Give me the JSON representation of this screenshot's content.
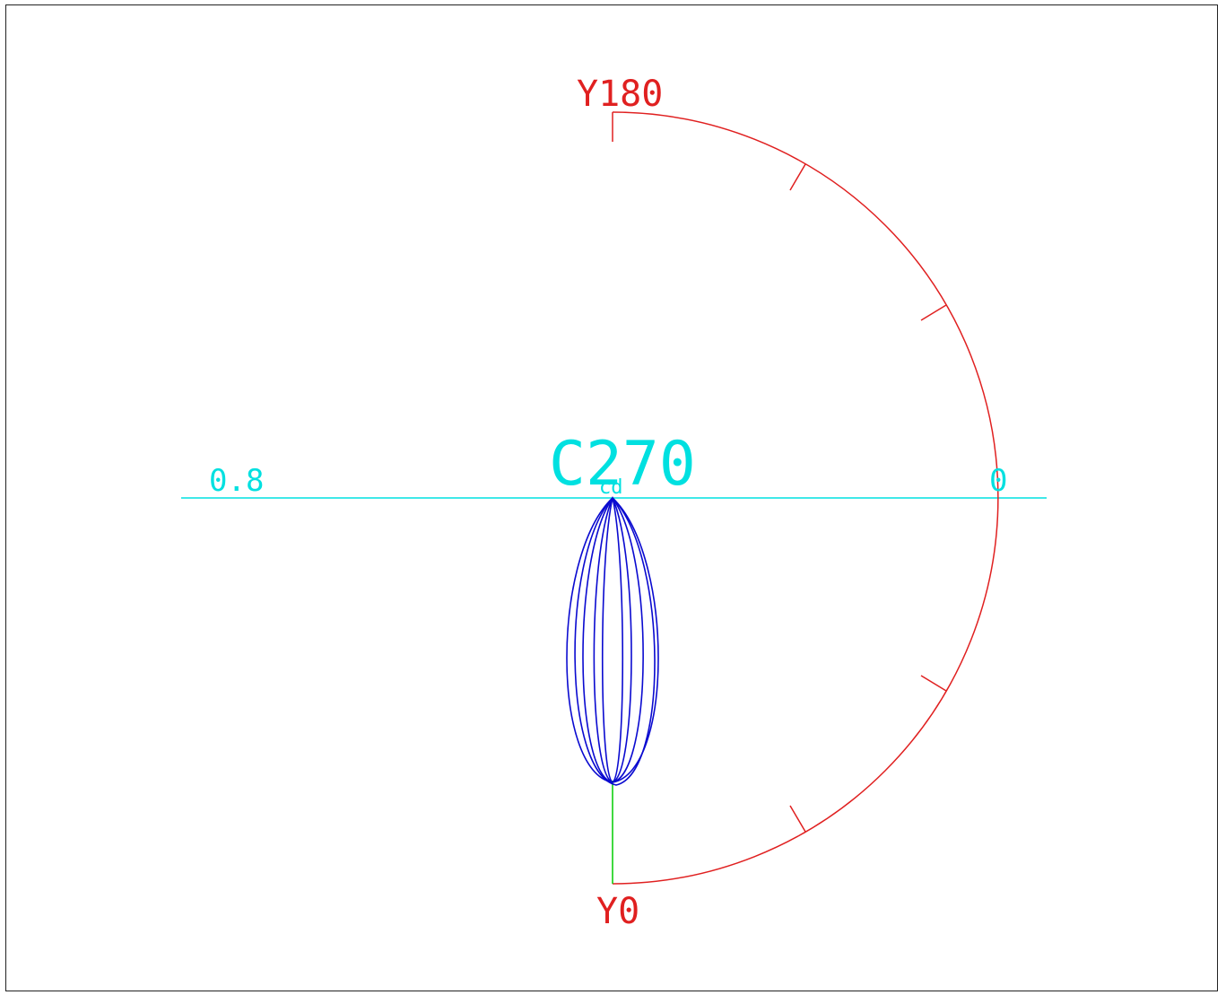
{
  "labels": {
    "top": "Y180",
    "bottom": "Y0",
    "left": "0.8",
    "right": "0",
    "plane": "C270",
    "center": "cd"
  },
  "colors": {
    "arc": "#e02020",
    "axis": "#00e0e0",
    "curve": "#0a0ad0",
    "stem": "#00cc00",
    "border": "#222222"
  }
}
